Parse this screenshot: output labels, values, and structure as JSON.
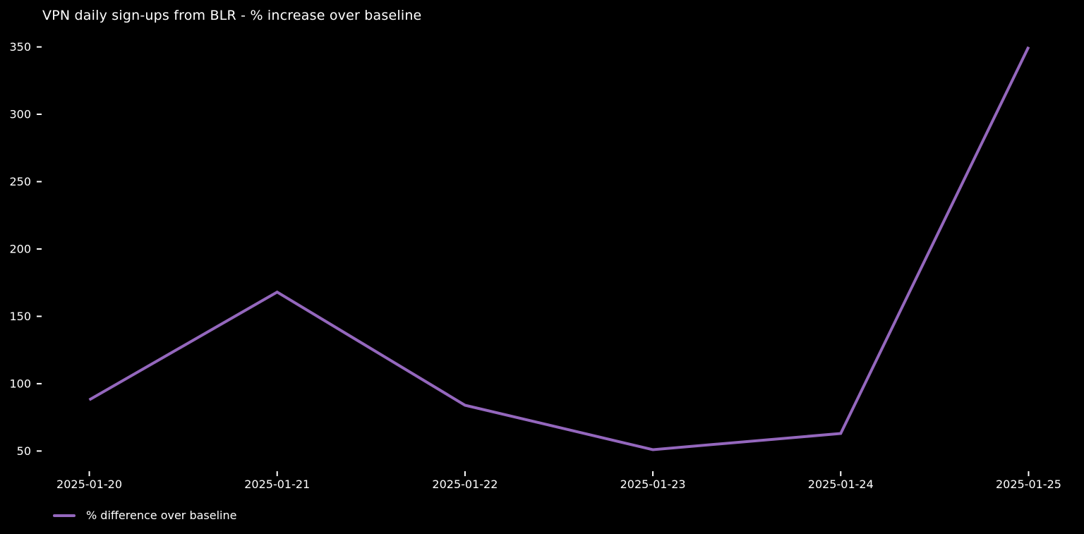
{
  "chart_data": {
    "type": "line",
    "title": "VPN daily sign-ups from BLR - % increase over baseline",
    "categories": [
      "2025-01-20",
      "2025-01-21",
      "2025-01-22",
      "2025-01-23",
      "2025-01-24",
      "2025-01-25"
    ],
    "series": [
      {
        "name": "% difference over baseline",
        "color": "#9467bd",
        "values": [
          88,
          168,
          84,
          51,
          63,
          350
        ]
      }
    ],
    "xlabel": "",
    "ylabel": "",
    "yticks": [
      50,
      100,
      150,
      200,
      250,
      300,
      350
    ],
    "ylim": [
      35,
      366
    ],
    "xlim": [
      -0.25,
      5.25
    ],
    "grid": false,
    "legend_position": "lower-left",
    "colors": {
      "background": "#000000",
      "text": "#ffffff",
      "tick": "#ffffff"
    }
  }
}
